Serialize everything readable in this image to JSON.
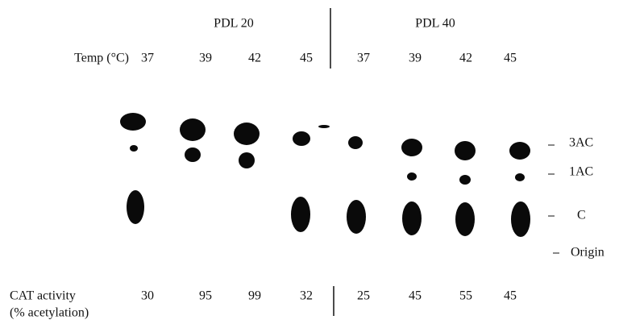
{
  "groups": [
    "PDL 20",
    "PDL 40"
  ],
  "temp_label": "Temp (°C)",
  "temps": [
    37,
    39,
    42,
    45,
    37,
    39,
    42,
    45
  ],
  "spot_labels": [
    "3AC",
    "1AC",
    "C",
    "Origin"
  ],
  "cat_label": "CAT activity",
  "cat_sublabel": "(% acetylation)",
  "cat_values": [
    30,
    95,
    99,
    32,
    25,
    45,
    55,
    45
  ]
}
